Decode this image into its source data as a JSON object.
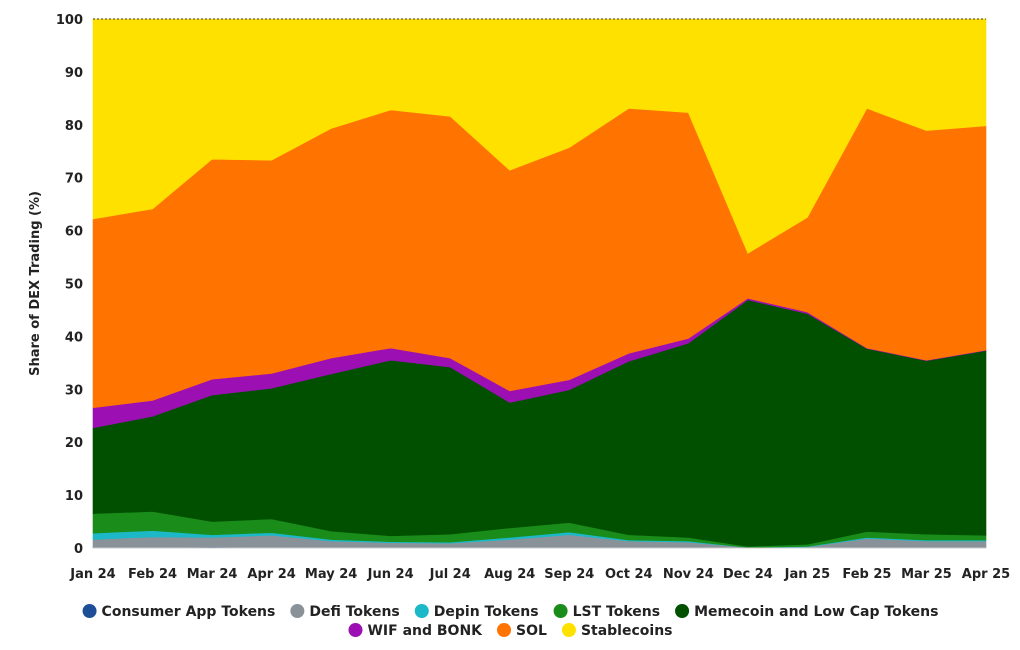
{
  "chart_data": {
    "type": "area",
    "stacked": true,
    "ylabel": "Share of DEX Trading (%)",
    "xlabel": "",
    "ylim": [
      0,
      100
    ],
    "yticks": [
      0,
      10,
      20,
      30,
      40,
      50,
      60,
      70,
      80,
      90,
      100
    ],
    "categories": [
      "Jan 24",
      "Feb 24",
      "Mar 24",
      "Apr 24",
      "May 24",
      "Jun 24",
      "Jul 24",
      "Aug 24",
      "Sep 24",
      "Oct 24",
      "Nov 24",
      "Dec 24",
      "Jan 25",
      "Feb 25",
      "Mar 25",
      "Apr 25"
    ],
    "legend_position": "bottom",
    "grid": false,
    "series": [
      {
        "name": "Consumer App Tokens",
        "color": "#1f4e99",
        "values": [
          0.1,
          0.1,
          0.2,
          0.1,
          0.1,
          0.1,
          0.1,
          0.1,
          0.1,
          0.1,
          0.1,
          0.0,
          0.0,
          0.0,
          0.0,
          0.0
        ]
      },
      {
        "name": "Defi Tokens",
        "color": "#8a9299",
        "values": [
          1.5,
          2.0,
          1.8,
          2.3,
          1.2,
          0.9,
          0.8,
          1.5,
          2.4,
          1.2,
          1.0,
          0.1,
          0.2,
          1.8,
          1.3,
          1.3
        ]
      },
      {
        "name": "Depin Tokens",
        "color": "#1cb8c8",
        "values": [
          1.2,
          1.2,
          0.5,
          0.5,
          0.3,
          0.2,
          0.2,
          0.4,
          0.5,
          0.2,
          0.2,
          0.0,
          0.1,
          0.2,
          0.2,
          0.2
        ]
      },
      {
        "name": "LST Tokens",
        "color": "#1a8c1a",
        "values": [
          3.7,
          3.6,
          2.5,
          2.6,
          1.6,
          1.1,
          1.5,
          1.8,
          1.8,
          1.0,
          0.7,
          0.2,
          0.4,
          1.1,
          1.1,
          0.9
        ]
      },
      {
        "name": "Memecoin and Low Cap Tokens",
        "color": "#005000",
        "values": [
          16.2,
          18.0,
          23.9,
          24.7,
          29.7,
          33.2,
          31.6,
          23.7,
          25.1,
          32.8,
          36.7,
          46.6,
          43.6,
          34.6,
          32.8,
          34.9
        ]
      },
      {
        "name": "WIF and BONK",
        "color": "#9b0fb3",
        "values": [
          3.8,
          3.0,
          3.0,
          2.8,
          3.0,
          2.3,
          1.7,
          2.2,
          1.9,
          1.5,
          0.9,
          0.3,
          0.3,
          0.1,
          0.1,
          0.1
        ]
      },
      {
        "name": "SOL",
        "color": "#ff7300",
        "values": [
          35.7,
          36.2,
          41.6,
          40.3,
          43.4,
          45.0,
          45.7,
          41.7,
          43.9,
          46.3,
          42.7,
          8.5,
          17.9,
          45.3,
          43.4,
          42.4
        ]
      },
      {
        "name": "Stablecoins",
        "color": "#ffe100",
        "values": [
          37.8,
          35.9,
          26.5,
          26.7,
          20.7,
          17.2,
          18.4,
          28.6,
          24.3,
          16.9,
          17.7,
          44.3,
          37.5,
          16.9,
          21.1,
          20.2
        ]
      }
    ]
  }
}
